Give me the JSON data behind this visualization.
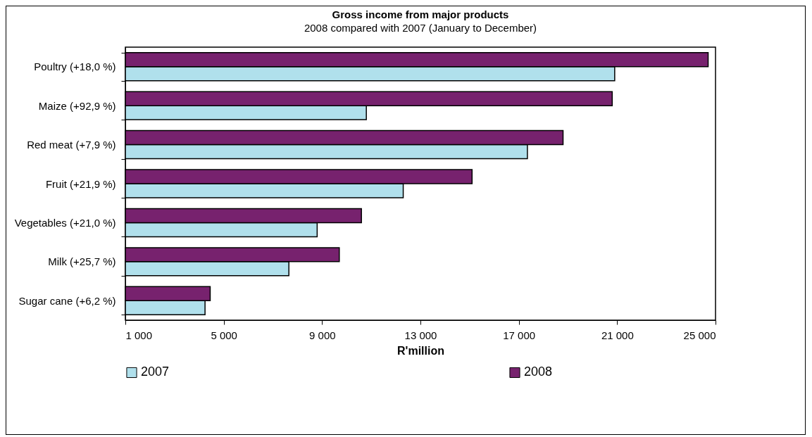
{
  "chart_data": {
    "type": "bar",
    "orientation": "horizontal",
    "title": "Gross income from major products",
    "subtitle": "2008 compared with 2007 (January to December)",
    "xlabel": "R'million",
    "categories": [
      "Poultry (+18,0 %)",
      "Maize (+92,9 %)",
      "Red meat (+7,9 %)",
      "Fruit (+21,9 %)",
      "Vegetables (+21,0 %)",
      "Milk (+25,7 %)",
      "Sugar cane (+6,2 %)"
    ],
    "series": [
      {
        "name": "2007",
        "color": "#b0e0ec",
        "values": [
          20900,
          10800,
          17350,
          12300,
          8800,
          7650,
          4240
        ]
      },
      {
        "name": "2008",
        "color": "#77226e",
        "values": [
          24700,
          20800,
          18800,
          15100,
          10600,
          9700,
          4450
        ]
      }
    ],
    "xlim": [
      1000,
      25000
    ],
    "xticks": [
      {
        "value": 1000,
        "label": "1 000"
      },
      {
        "value": 5000,
        "label": "5 000"
      },
      {
        "value": 9000,
        "label": "9 000"
      },
      {
        "value": 13000,
        "label": "13 000"
      },
      {
        "value": 17000,
        "label": "17 000"
      },
      {
        "value": 21000,
        "label": "21 000"
      },
      {
        "value": 25000,
        "label": "25 000"
      }
    ],
    "grid": false,
    "legend": "bottom"
  }
}
